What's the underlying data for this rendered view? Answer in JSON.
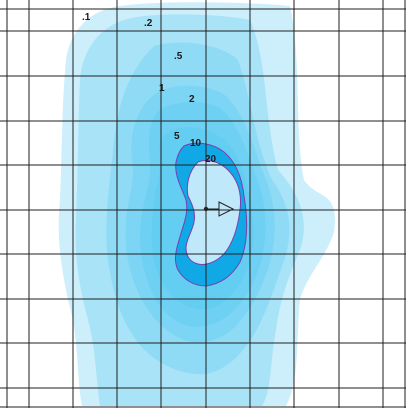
{
  "colors": {
    "background": "#ffffff",
    "grid": "#1f1f1f",
    "level_fill": "#4cc6f1",
    "inner_fill": "#bfe9fa",
    "inner_ring": "#10a9e6",
    "contour_line": "#7a3fb0",
    "marker": "#222222"
  },
  "contours": {
    "labels": [
      ".1",
      ".2",
      ".5",
      "1",
      "2",
      "5",
      "10",
      "20"
    ]
  },
  "marker": {
    "icon": "arrow-outline-icon"
  }
}
